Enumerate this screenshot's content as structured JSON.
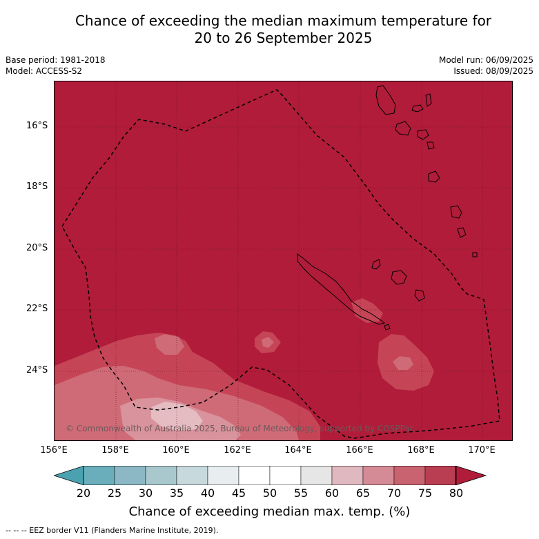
{
  "title_line1": "Chance of exceeding the median maximum temperature for",
  "title_line2": "20 to 26 September 2025",
  "meta": {
    "base_period": "Base period: 1981-2018",
    "model": "Model: ACCESS-S2",
    "model_run": "Model run: 06/09/2025",
    "issued": "Issued: 08/09/2025"
  },
  "map": {
    "lat_labels": [
      "16°S",
      "18°S",
      "20°S",
      "22°S",
      "24°S"
    ],
    "lon_labels": [
      "156°E",
      "158°E",
      "160°E",
      "162°E",
      "164°E",
      "166°E",
      "168°E",
      "170°E"
    ],
    "copyright": "© Commonwealth of Australia 2025, Bureau of Meteorology, supported by COSPPac",
    "background_color": "#b01c3a"
  },
  "colorbar": {
    "ticks": [
      "20",
      "25",
      "30",
      "35",
      "40",
      "45",
      "50",
      "55",
      "60",
      "65",
      "70",
      "75",
      "80"
    ],
    "colors": [
      "#6aaebb",
      "#8bb8c4",
      "#a9c8cd",
      "#c7d9dd",
      "#e8eef0",
      "#ffffff",
      "#ffffff",
      "#e6e6e6",
      "#e0b8bf",
      "#d48b96",
      "#c8636f",
      "#ba3e51"
    ],
    "under_color": "#4aa1b0",
    "over_color": "#b01c3a",
    "label": "Chance of exceeding median max. temp. (%)"
  },
  "legend_note": "--  --  -- EEZ border V11 (Flanders Marine Institute, 2019)."
}
